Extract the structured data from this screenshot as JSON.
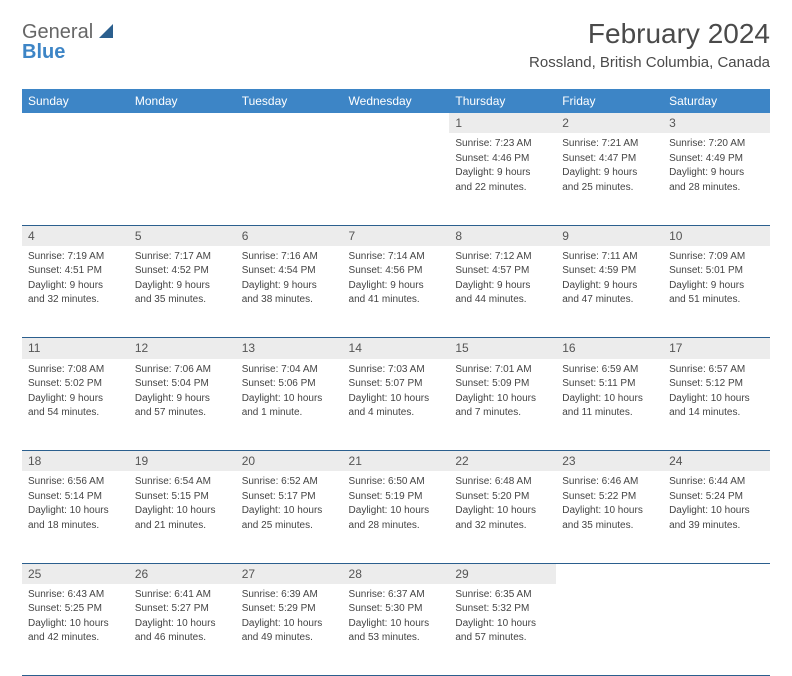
{
  "header": {
    "logo_top": "General",
    "logo_bottom": "Blue",
    "month_title": "February 2024",
    "location": "Rossland, British Columbia, Canada"
  },
  "style": {
    "header_bg": "#3d85c6",
    "header_fg": "#ffffff",
    "daynum_bg": "#ececec",
    "border_color": "#2b5f8e",
    "text_color": "#444444",
    "title_color": "#4a4a4a",
    "font_family": "Arial, Helvetica, sans-serif",
    "weekday_fontsize": 12,
    "cell_fontsize": 10
  },
  "weekdays": [
    "Sunday",
    "Monday",
    "Tuesday",
    "Wednesday",
    "Thursday",
    "Friday",
    "Saturday"
  ],
  "weeks": [
    [
      null,
      null,
      null,
      null,
      {
        "n": "1",
        "sr": "Sunrise: 7:23 AM",
        "ss": "Sunset: 4:46 PM",
        "d1": "Daylight: 9 hours",
        "d2": "and 22 minutes."
      },
      {
        "n": "2",
        "sr": "Sunrise: 7:21 AM",
        "ss": "Sunset: 4:47 PM",
        "d1": "Daylight: 9 hours",
        "d2": "and 25 minutes."
      },
      {
        "n": "3",
        "sr": "Sunrise: 7:20 AM",
        "ss": "Sunset: 4:49 PM",
        "d1": "Daylight: 9 hours",
        "d2": "and 28 minutes."
      }
    ],
    [
      {
        "n": "4",
        "sr": "Sunrise: 7:19 AM",
        "ss": "Sunset: 4:51 PM",
        "d1": "Daylight: 9 hours",
        "d2": "and 32 minutes."
      },
      {
        "n": "5",
        "sr": "Sunrise: 7:17 AM",
        "ss": "Sunset: 4:52 PM",
        "d1": "Daylight: 9 hours",
        "d2": "and 35 minutes."
      },
      {
        "n": "6",
        "sr": "Sunrise: 7:16 AM",
        "ss": "Sunset: 4:54 PM",
        "d1": "Daylight: 9 hours",
        "d2": "and 38 minutes."
      },
      {
        "n": "7",
        "sr": "Sunrise: 7:14 AM",
        "ss": "Sunset: 4:56 PM",
        "d1": "Daylight: 9 hours",
        "d2": "and 41 minutes."
      },
      {
        "n": "8",
        "sr": "Sunrise: 7:12 AM",
        "ss": "Sunset: 4:57 PM",
        "d1": "Daylight: 9 hours",
        "d2": "and 44 minutes."
      },
      {
        "n": "9",
        "sr": "Sunrise: 7:11 AM",
        "ss": "Sunset: 4:59 PM",
        "d1": "Daylight: 9 hours",
        "d2": "and 47 minutes."
      },
      {
        "n": "10",
        "sr": "Sunrise: 7:09 AM",
        "ss": "Sunset: 5:01 PM",
        "d1": "Daylight: 9 hours",
        "d2": "and 51 minutes."
      }
    ],
    [
      {
        "n": "11",
        "sr": "Sunrise: 7:08 AM",
        "ss": "Sunset: 5:02 PM",
        "d1": "Daylight: 9 hours",
        "d2": "and 54 minutes."
      },
      {
        "n": "12",
        "sr": "Sunrise: 7:06 AM",
        "ss": "Sunset: 5:04 PM",
        "d1": "Daylight: 9 hours",
        "d2": "and 57 minutes."
      },
      {
        "n": "13",
        "sr": "Sunrise: 7:04 AM",
        "ss": "Sunset: 5:06 PM",
        "d1": "Daylight: 10 hours",
        "d2": "and 1 minute."
      },
      {
        "n": "14",
        "sr": "Sunrise: 7:03 AM",
        "ss": "Sunset: 5:07 PM",
        "d1": "Daylight: 10 hours",
        "d2": "and 4 minutes."
      },
      {
        "n": "15",
        "sr": "Sunrise: 7:01 AM",
        "ss": "Sunset: 5:09 PM",
        "d1": "Daylight: 10 hours",
        "d2": "and 7 minutes."
      },
      {
        "n": "16",
        "sr": "Sunrise: 6:59 AM",
        "ss": "Sunset: 5:11 PM",
        "d1": "Daylight: 10 hours",
        "d2": "and 11 minutes."
      },
      {
        "n": "17",
        "sr": "Sunrise: 6:57 AM",
        "ss": "Sunset: 5:12 PM",
        "d1": "Daylight: 10 hours",
        "d2": "and 14 minutes."
      }
    ],
    [
      {
        "n": "18",
        "sr": "Sunrise: 6:56 AM",
        "ss": "Sunset: 5:14 PM",
        "d1": "Daylight: 10 hours",
        "d2": "and 18 minutes."
      },
      {
        "n": "19",
        "sr": "Sunrise: 6:54 AM",
        "ss": "Sunset: 5:15 PM",
        "d1": "Daylight: 10 hours",
        "d2": "and 21 minutes."
      },
      {
        "n": "20",
        "sr": "Sunrise: 6:52 AM",
        "ss": "Sunset: 5:17 PM",
        "d1": "Daylight: 10 hours",
        "d2": "and 25 minutes."
      },
      {
        "n": "21",
        "sr": "Sunrise: 6:50 AM",
        "ss": "Sunset: 5:19 PM",
        "d1": "Daylight: 10 hours",
        "d2": "and 28 minutes."
      },
      {
        "n": "22",
        "sr": "Sunrise: 6:48 AM",
        "ss": "Sunset: 5:20 PM",
        "d1": "Daylight: 10 hours",
        "d2": "and 32 minutes."
      },
      {
        "n": "23",
        "sr": "Sunrise: 6:46 AM",
        "ss": "Sunset: 5:22 PM",
        "d1": "Daylight: 10 hours",
        "d2": "and 35 minutes."
      },
      {
        "n": "24",
        "sr": "Sunrise: 6:44 AM",
        "ss": "Sunset: 5:24 PM",
        "d1": "Daylight: 10 hours",
        "d2": "and 39 minutes."
      }
    ],
    [
      {
        "n": "25",
        "sr": "Sunrise: 6:43 AM",
        "ss": "Sunset: 5:25 PM",
        "d1": "Daylight: 10 hours",
        "d2": "and 42 minutes."
      },
      {
        "n": "26",
        "sr": "Sunrise: 6:41 AM",
        "ss": "Sunset: 5:27 PM",
        "d1": "Daylight: 10 hours",
        "d2": "and 46 minutes."
      },
      {
        "n": "27",
        "sr": "Sunrise: 6:39 AM",
        "ss": "Sunset: 5:29 PM",
        "d1": "Daylight: 10 hours",
        "d2": "and 49 minutes."
      },
      {
        "n": "28",
        "sr": "Sunrise: 6:37 AM",
        "ss": "Sunset: 5:30 PM",
        "d1": "Daylight: 10 hours",
        "d2": "and 53 minutes."
      },
      {
        "n": "29",
        "sr": "Sunrise: 6:35 AM",
        "ss": "Sunset: 5:32 PM",
        "d1": "Daylight: 10 hours",
        "d2": "and 57 minutes."
      },
      null,
      null
    ]
  ]
}
